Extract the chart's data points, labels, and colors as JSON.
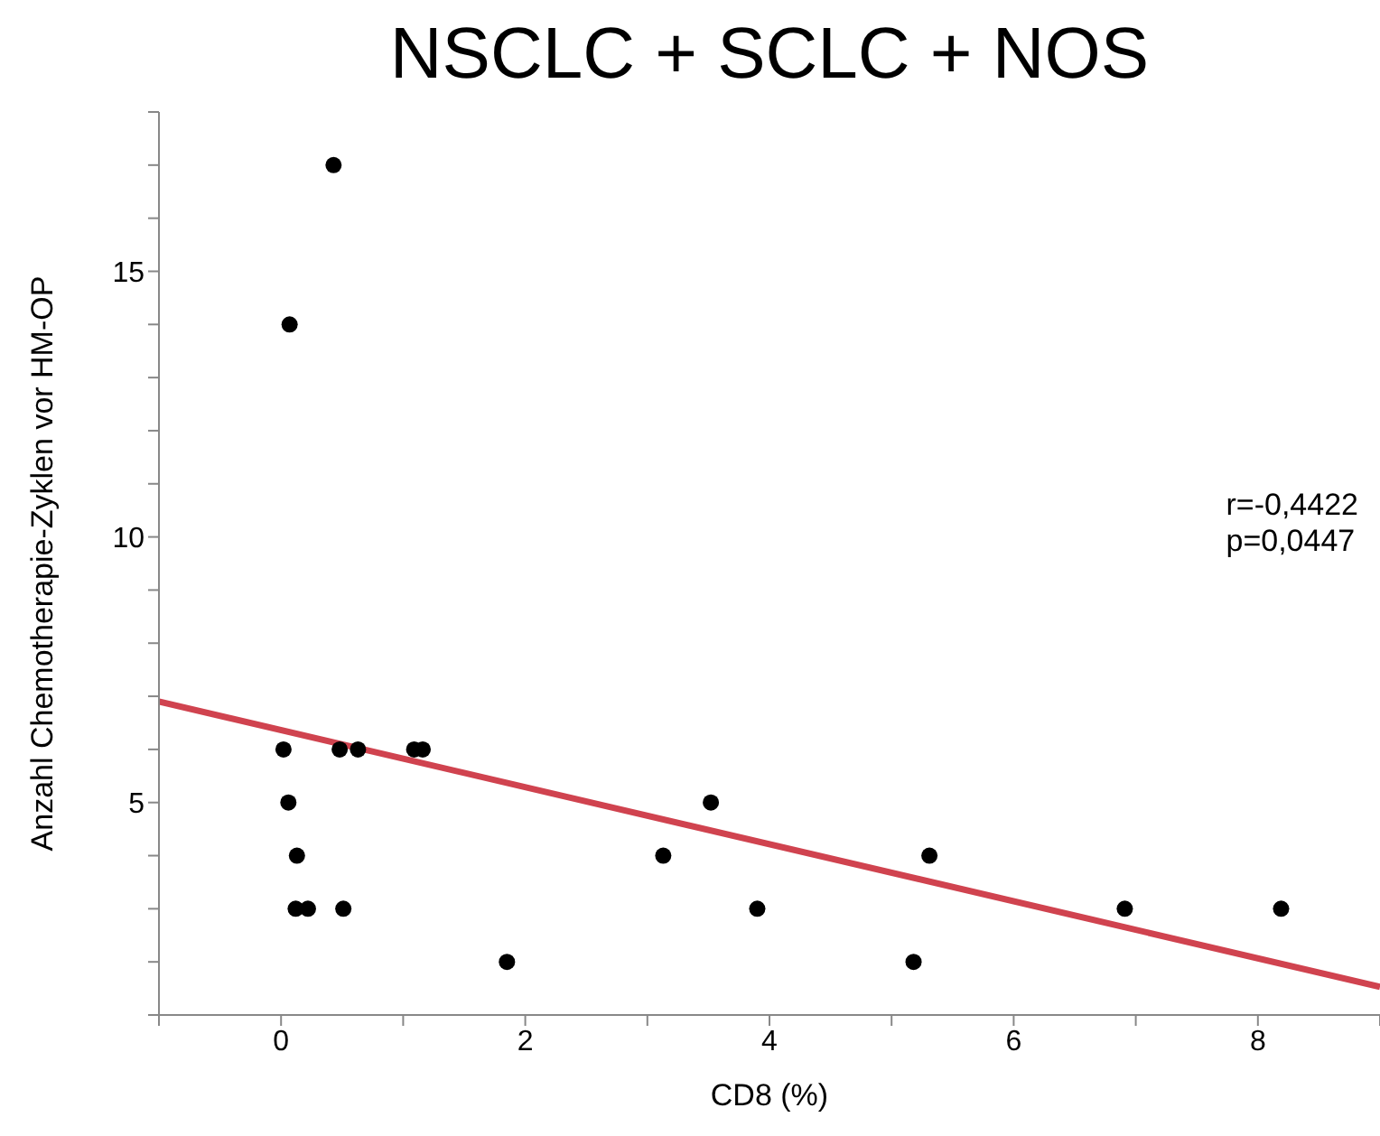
{
  "chart_data": {
    "type": "scatter",
    "title": "NSCLC + SCLC + NOS",
    "xlabel": "CD8 (%)",
    "ylabel": "Anzahl Chemotherapie-Zyklen vor HM-OP",
    "annotations": [
      "r=-0,4422",
      "p=0,0447"
    ],
    "xlim": [
      -1,
      9
    ],
    "ylim": [
      1,
      18
    ],
    "xticks": [
      {
        "value": -1,
        "label": null
      },
      0,
      {
        "value": 1,
        "label": null
      },
      2,
      {
        "value": 3,
        "label": null
      },
      4,
      {
        "value": 5,
        "label": null
      },
      6,
      {
        "value": 7,
        "label": null
      },
      8,
      {
        "value": 9,
        "label": null
      }
    ],
    "yticks": [
      {
        "value": 1,
        "label": null
      },
      {
        "value": 2,
        "label": null
      },
      {
        "value": 3,
        "label": null
      },
      {
        "value": 4,
        "label": null
      },
      5,
      {
        "value": 6,
        "label": null
      },
      {
        "value": 7,
        "label": null
      },
      {
        "value": 8,
        "label": null
      },
      {
        "value": 9,
        "label": null
      },
      10,
      {
        "value": 11,
        "label": null
      },
      {
        "value": 12,
        "label": null
      },
      {
        "value": 13,
        "label": null
      },
      {
        "value": 14,
        "label": null
      },
      15,
      {
        "value": 16,
        "label": null
      },
      {
        "value": 17,
        "label": null
      },
      {
        "value": 18,
        "label": null
      }
    ],
    "marker": "circle",
    "series": [
      {
        "color": "#000000",
        "x": [
          0.43,
          0.07,
          0.02,
          0.48,
          0.63,
          1.09,
          1.16,
          0.06,
          0.13,
          0.12,
          0.22,
          0.51,
          1.85,
          3.13,
          3.52,
          3.9,
          5.18,
          5.31,
          6.91,
          8.19
        ],
        "values": [
          17,
          14,
          6,
          6,
          6,
          6,
          6,
          5,
          4,
          3,
          3,
          3,
          2,
          4,
          5,
          3,
          2,
          4,
          3,
          3
        ]
      },
      {
        "type": "line",
        "color": "#d0434f",
        "marker": "none",
        "x": [
          -1,
          9
        ],
        "values": [
          6.9,
          1.53
        ]
      }
    ]
  }
}
